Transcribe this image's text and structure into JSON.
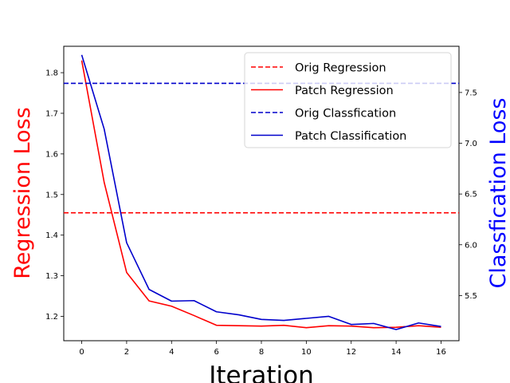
{
  "chart_data": {
    "type": "line",
    "xlabel": "Iteration",
    "ylabel_left": "Regression Loss",
    "ylabel_right": "Classfication Loss",
    "xlim": [
      -0.8,
      16.8
    ],
    "ylim_left": [
      1.14,
      1.865
    ],
    "ylim_right": [
      5.055,
      7.955
    ],
    "x_ticks": [
      0,
      2,
      4,
      6,
      8,
      10,
      12,
      14,
      16
    ],
    "y_ticks_left": [
      1.2,
      1.3,
      1.4,
      1.5,
      1.6,
      1.7,
      1.8
    ],
    "y_ticks_right": [
      5.5,
      6.0,
      6.5,
      7.0,
      7.5
    ],
    "grid": false,
    "legend_position": "top-right",
    "colors": {
      "regression": "#ff0000",
      "classification": "#0000cc",
      "left_axis_label": "#ff0000",
      "right_axis_label": "#0000ff"
    },
    "x": [
      0,
      1,
      2,
      3,
      4,
      5,
      6,
      7,
      8,
      9,
      10,
      11,
      12,
      13,
      14,
      15,
      16
    ],
    "series": [
      {
        "name": "Orig Regression",
        "axis": "left",
        "style": "dashed",
        "color": "#ff0000",
        "constant": 1.455
      },
      {
        "name": "Patch Regression",
        "axis": "left",
        "style": "solid",
        "color": "#ff0000",
        "values": [
          1.83,
          1.53,
          1.308,
          1.238,
          1.225,
          1.202,
          1.178,
          1.177,
          1.176,
          1.178,
          1.172,
          1.177,
          1.176,
          1.172,
          1.173,
          1.177,
          1.173
        ]
      },
      {
        "name": "Orig Classfication",
        "axis": "right",
        "style": "dashed",
        "color": "#0000cc",
        "constant": 7.59
      },
      {
        "name": "Patch Classification",
        "axis": "right",
        "style": "solid",
        "color": "#0000cc",
        "values": [
          7.87,
          7.14,
          6.02,
          5.56,
          5.445,
          5.45,
          5.34,
          5.31,
          5.265,
          5.255,
          5.275,
          5.295,
          5.215,
          5.225,
          5.165,
          5.23,
          5.195
        ]
      }
    ]
  }
}
